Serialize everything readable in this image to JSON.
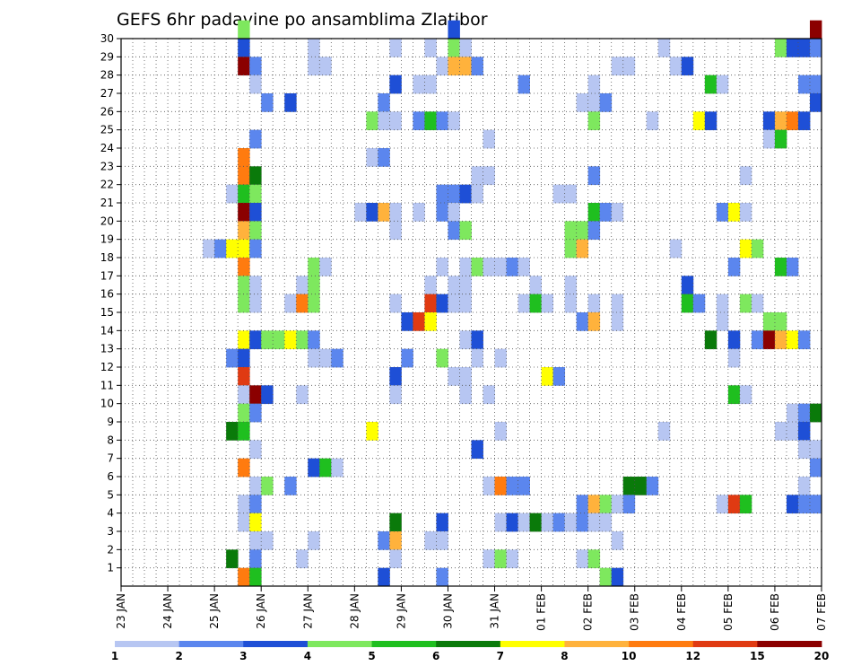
{
  "chart_data": {
    "type": "heatmap",
    "title": "GEFS 6hr padavine po ansamblima Zlatibor",
    "xlabel": "",
    "ylabel": "",
    "x_tick_labels": [
      "23 JAN",
      "24 JAN",
      "25 JAN",
      "26 JAN",
      "27 JAN",
      "28 JAN",
      "29 JAN",
      "30 JAN",
      "31 JAN",
      "01 FEB",
      "02 FEB",
      "03 FEB",
      "04 FEB",
      "05 FEB",
      "06 FEB",
      "07 FEB"
    ],
    "y_tick_labels": [
      "1",
      "2",
      "3",
      "4",
      "5",
      "6",
      "7",
      "8",
      "9",
      "10",
      "11",
      "12",
      "13",
      "14",
      "15",
      "16",
      "17",
      "18",
      "19",
      "20",
      "21",
      "22",
      "23",
      "24",
      "25",
      "26",
      "27",
      "28",
      "29",
      "30"
    ],
    "x_range_6h_steps": [
      0,
      60
    ],
    "y_range_members": [
      0,
      30
    ],
    "grid": true,
    "colorbar": {
      "placement": "bottom",
      "labels": [
        "1",
        "2",
        "3",
        "4",
        "5",
        "6",
        "7",
        "8",
        "10",
        "12",
        "15",
        "20"
      ],
      "colors": [
        "#b7c6f2",
        "#5b86ee",
        "#1e4fd6",
        "#7ee85e",
        "#1fbf1f",
        "#0a7a0a",
        "#ffff00",
        "#ffb23c",
        "#ff7b0f",
        "#e03a12",
        "#8b0000"
      ]
    },
    "cells": [
      [
        10,
        30,
        3
      ],
      [
        28,
        30,
        2
      ],
      [
        59,
        30,
        10
      ],
      [
        10,
        29,
        2
      ],
      [
        16,
        29,
        0
      ],
      [
        23,
        29,
        0
      ],
      [
        26,
        29,
        0
      ],
      [
        28,
        29,
        3
      ],
      [
        29,
        29,
        0
      ],
      [
        46,
        29,
        0
      ],
      [
        56,
        29,
        3
      ],
      [
        57,
        29,
        2
      ],
      [
        58,
        29,
        2
      ],
      [
        59,
        29,
        1
      ],
      [
        10,
        28,
        10
      ],
      [
        11,
        28,
        1
      ],
      [
        16,
        28,
        0
      ],
      [
        17,
        28,
        0
      ],
      [
        27,
        28,
        0
      ],
      [
        28,
        28,
        7
      ],
      [
        29,
        28,
        7
      ],
      [
        30,
        28,
        1
      ],
      [
        42,
        28,
        0
      ],
      [
        43,
        28,
        0
      ],
      [
        47,
        28,
        0
      ],
      [
        48,
        28,
        2
      ],
      [
        11,
        27,
        0
      ],
      [
        23,
        27,
        2
      ],
      [
        25,
        27,
        0
      ],
      [
        26,
        27,
        0
      ],
      [
        34,
        27,
        1
      ],
      [
        40,
        27,
        0
      ],
      [
        50,
        27,
        4
      ],
      [
        51,
        27,
        0
      ],
      [
        58,
        27,
        1
      ],
      [
        59,
        27,
        1
      ],
      [
        12,
        26,
        1
      ],
      [
        14,
        26,
        2
      ],
      [
        22,
        26,
        1
      ],
      [
        39,
        26,
        0
      ],
      [
        40,
        26,
        0
      ],
      [
        41,
        26,
        1
      ],
      [
        59,
        26,
        2
      ],
      [
        21,
        25,
        3
      ],
      [
        22,
        25,
        0
      ],
      [
        23,
        25,
        0
      ],
      [
        25,
        25,
        1
      ],
      [
        26,
        25,
        4
      ],
      [
        27,
        25,
        1
      ],
      [
        28,
        25,
        0
      ],
      [
        40,
        25,
        3
      ],
      [
        45,
        25,
        0
      ],
      [
        49,
        25,
        6
      ],
      [
        50,
        25,
        2
      ],
      [
        55,
        25,
        2
      ],
      [
        56,
        25,
        7
      ],
      [
        57,
        25,
        8
      ],
      [
        58,
        25,
        2
      ],
      [
        11,
        24,
        1
      ],
      [
        31,
        24,
        0
      ],
      [
        55,
        24,
        0
      ],
      [
        56,
        24,
        4
      ],
      [
        10,
        23,
        8
      ],
      [
        21,
        23,
        0
      ],
      [
        22,
        23,
        1
      ],
      [
        10,
        22,
        8
      ],
      [
        11,
        22,
        5
      ],
      [
        30,
        22,
        0
      ],
      [
        31,
        22,
        0
      ],
      [
        40,
        22,
        1
      ],
      [
        53,
        22,
        0
      ],
      [
        9,
        21,
        0
      ],
      [
        10,
        21,
        4
      ],
      [
        11,
        21,
        3
      ],
      [
        27,
        21,
        1
      ],
      [
        28,
        21,
        1
      ],
      [
        29,
        21,
        2
      ],
      [
        30,
        21,
        0
      ],
      [
        37,
        21,
        0
      ],
      [
        38,
        21,
        0
      ],
      [
        10,
        20,
        10
      ],
      [
        11,
        20,
        2
      ],
      [
        20,
        20,
        0
      ],
      [
        21,
        20,
        2
      ],
      [
        22,
        20,
        7
      ],
      [
        23,
        20,
        0
      ],
      [
        25,
        20,
        0
      ],
      [
        27,
        20,
        1
      ],
      [
        28,
        20,
        0
      ],
      [
        40,
        20,
        4
      ],
      [
        41,
        20,
        1
      ],
      [
        42,
        20,
        0
      ],
      [
        51,
        20,
        1
      ],
      [
        52,
        20,
        6
      ],
      [
        53,
        20,
        0
      ],
      [
        10,
        19,
        7
      ],
      [
        11,
        19,
        3
      ],
      [
        23,
        19,
        0
      ],
      [
        28,
        19,
        1
      ],
      [
        29,
        19,
        3
      ],
      [
        38,
        19,
        3
      ],
      [
        39,
        19,
        3
      ],
      [
        40,
        19,
        1
      ],
      [
        7,
        18,
        0
      ],
      [
        8,
        18,
        1
      ],
      [
        9,
        18,
        6
      ],
      [
        10,
        18,
        6
      ],
      [
        11,
        18,
        1
      ],
      [
        38,
        18,
        3
      ],
      [
        39,
        18,
        7
      ],
      [
        47,
        18,
        0
      ],
      [
        53,
        18,
        6
      ],
      [
        54,
        18,
        3
      ],
      [
        10,
        17,
        8
      ],
      [
        16,
        17,
        3
      ],
      [
        17,
        17,
        0
      ],
      [
        27,
        17,
        0
      ],
      [
        29,
        17,
        0
      ],
      [
        30,
        17,
        3
      ],
      [
        31,
        17,
        0
      ],
      [
        32,
        17,
        0
      ],
      [
        33,
        17,
        1
      ],
      [
        34,
        17,
        0
      ],
      [
        52,
        17,
        1
      ],
      [
        56,
        17,
        4
      ],
      [
        57,
        17,
        1
      ],
      [
        10,
        16,
        3
      ],
      [
        11,
        16,
        0
      ],
      [
        15,
        16,
        0
      ],
      [
        16,
        16,
        3
      ],
      [
        26,
        16,
        0
      ],
      [
        28,
        16,
        0
      ],
      [
        29,
        16,
        0
      ],
      [
        35,
        16,
        0
      ],
      [
        38,
        16,
        0
      ],
      [
        48,
        16,
        2
      ],
      [
        10,
        15,
        3
      ],
      [
        11,
        15,
        0
      ],
      [
        14,
        15,
        0
      ],
      [
        15,
        15,
        8
      ],
      [
        16,
        15,
        3
      ],
      [
        23,
        15,
        0
      ],
      [
        26,
        15,
        9
      ],
      [
        27,
        15,
        2
      ],
      [
        28,
        15,
        0
      ],
      [
        29,
        15,
        0
      ],
      [
        34,
        15,
        0
      ],
      [
        35,
        15,
        4
      ],
      [
        36,
        15,
        0
      ],
      [
        38,
        15,
        0
      ],
      [
        40,
        15,
        0
      ],
      [
        42,
        15,
        0
      ],
      [
        48,
        15,
        4
      ],
      [
        49,
        15,
        1
      ],
      [
        51,
        15,
        0
      ],
      [
        53,
        15,
        3
      ],
      [
        54,
        15,
        0
      ],
      [
        24,
        14,
        2
      ],
      [
        25,
        14,
        9
      ],
      [
        26,
        14,
        6
      ],
      [
        39,
        14,
        1
      ],
      [
        40,
        14,
        7
      ],
      [
        42,
        14,
        0
      ],
      [
        51,
        14,
        0
      ],
      [
        55,
        14,
        3
      ],
      [
        56,
        14,
        3
      ],
      [
        10,
        13,
        6
      ],
      [
        11,
        13,
        2
      ],
      [
        12,
        13,
        3
      ],
      [
        13,
        13,
        3
      ],
      [
        14,
        13,
        6
      ],
      [
        15,
        13,
        3
      ],
      [
        16,
        13,
        1
      ],
      [
        29,
        13,
        0
      ],
      [
        30,
        13,
        2
      ],
      [
        50,
        13,
        5
      ],
      [
        52,
        13,
        2
      ],
      [
        54,
        13,
        1
      ],
      [
        55,
        13,
        10
      ],
      [
        56,
        13,
        7
      ],
      [
        57,
        13,
        6
      ],
      [
        58,
        13,
        1
      ],
      [
        9,
        12,
        1
      ],
      [
        10,
        12,
        2
      ],
      [
        16,
        12,
        0
      ],
      [
        17,
        12,
        0
      ],
      [
        18,
        12,
        1
      ],
      [
        24,
        12,
        1
      ],
      [
        27,
        12,
        3
      ],
      [
        30,
        12,
        0
      ],
      [
        32,
        12,
        0
      ],
      [
        52,
        12,
        0
      ],
      [
        10,
        11,
        9
      ],
      [
        23,
        11,
        2
      ],
      [
        28,
        11,
        0
      ],
      [
        29,
        11,
        0
      ],
      [
        36,
        11,
        6
      ],
      [
        37,
        11,
        1
      ],
      [
        10,
        10,
        0
      ],
      [
        11,
        10,
        10
      ],
      [
        12,
        10,
        2
      ],
      [
        15,
        10,
        0
      ],
      [
        23,
        10,
        0
      ],
      [
        29,
        10,
        0
      ],
      [
        31,
        10,
        0
      ],
      [
        52,
        10,
        4
      ],
      [
        53,
        10,
        0
      ],
      [
        10,
        9,
        3
      ],
      [
        11,
        9,
        1
      ],
      [
        57,
        9,
        0
      ],
      [
        58,
        9,
        1
      ],
      [
        59,
        9,
        5
      ],
      [
        9,
        8,
        5
      ],
      [
        10,
        8,
        4
      ],
      [
        21,
        8,
        6
      ],
      [
        32,
        8,
        0
      ],
      [
        46,
        8,
        0
      ],
      [
        56,
        8,
        0
      ],
      [
        57,
        8,
        0
      ],
      [
        58,
        8,
        2
      ],
      [
        11,
        7,
        0
      ],
      [
        30,
        7,
        2
      ],
      [
        58,
        7,
        0
      ],
      [
        59,
        7,
        0
      ],
      [
        10,
        6,
        8
      ],
      [
        16,
        6,
        2
      ],
      [
        17,
        6,
        4
      ],
      [
        18,
        6,
        0
      ],
      [
        59,
        6,
        1
      ],
      [
        11,
        5,
        0
      ],
      [
        12,
        5,
        3
      ],
      [
        14,
        5,
        1
      ],
      [
        31,
        5,
        0
      ],
      [
        32,
        5,
        8
      ],
      [
        33,
        5,
        1
      ],
      [
        34,
        5,
        1
      ],
      [
        43,
        5,
        5
      ],
      [
        44,
        5,
        5
      ],
      [
        45,
        5,
        1
      ],
      [
        58,
        5,
        0
      ],
      [
        10,
        4,
        0
      ],
      [
        11,
        4,
        1
      ],
      [
        39,
        4,
        1
      ],
      [
        40,
        4,
        7
      ],
      [
        41,
        4,
        3
      ],
      [
        42,
        4,
        0
      ],
      [
        43,
        4,
        1
      ],
      [
        51,
        4,
        0
      ],
      [
        52,
        4,
        9
      ],
      [
        53,
        4,
        4
      ],
      [
        57,
        4,
        2
      ],
      [
        58,
        4,
        1
      ],
      [
        59,
        4,
        1
      ],
      [
        10,
        3,
        0
      ],
      [
        11,
        3,
        6
      ],
      [
        23,
        3,
        5
      ],
      [
        27,
        3,
        2
      ],
      [
        32,
        3,
        0
      ],
      [
        33,
        3,
        2
      ],
      [
        34,
        3,
        0
      ],
      [
        35,
        3,
        5
      ],
      [
        36,
        3,
        0
      ],
      [
        37,
        3,
        1
      ],
      [
        38,
        3,
        0
      ],
      [
        39,
        3,
        1
      ],
      [
        40,
        3,
        0
      ],
      [
        41,
        3,
        0
      ],
      [
        11,
        2,
        0
      ],
      [
        12,
        2,
        0
      ],
      [
        16,
        2,
        0
      ],
      [
        22,
        2,
        1
      ],
      [
        23,
        2,
        7
      ],
      [
        26,
        2,
        0
      ],
      [
        27,
        2,
        0
      ],
      [
        42,
        2,
        0
      ],
      [
        9,
        1,
        5
      ],
      [
        11,
        1,
        1
      ],
      [
        15,
        1,
        0
      ],
      [
        23,
        1,
        0
      ],
      [
        31,
        1,
        0
      ],
      [
        32,
        1,
        3
      ],
      [
        33,
        1,
        0
      ],
      [
        39,
        1,
        0
      ],
      [
        40,
        1,
        3
      ],
      [
        10,
        0,
        8
      ],
      [
        11,
        0,
        4
      ],
      [
        22,
        0,
        2
      ],
      [
        27,
        0,
        1
      ],
      [
        41,
        0,
        3
      ],
      [
        42,
        0,
        2
      ]
    ]
  }
}
